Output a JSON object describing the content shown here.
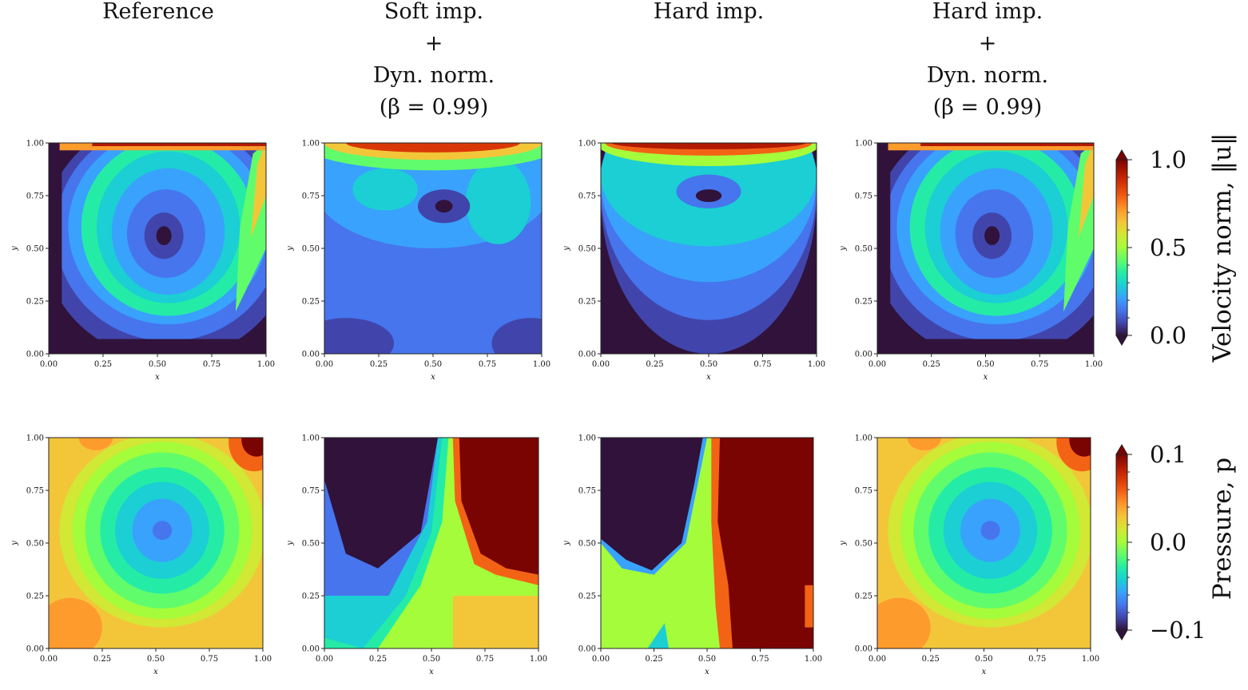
{
  "columns": [
    {
      "title_lines": [
        "Reference"
      ]
    },
    {
      "title_lines": [
        "Soft imp.",
        "+",
        "Dyn. norm.",
        "(β = 0.99)"
      ]
    },
    {
      "title_lines": [
        "Hard imp."
      ]
    },
    {
      "title_lines": [
        "Hard imp.",
        "+",
        "Dyn. norm.",
        "(β = 0.99)"
      ]
    }
  ],
  "chart_data": [
    {
      "type": "heatmap",
      "row": "velocity",
      "panels": [
        "Reference",
        "Soft imp. + Dyn. norm. (β = 0.99)",
        "Hard imp.",
        "Hard imp. + Dyn. norm. (β = 0.99)"
      ],
      "xlabel": "x",
      "ylabel": "y",
      "xlim": [
        0,
        1
      ],
      "ylim": [
        0,
        1
      ],
      "xticks": [
        "0.00",
        "0.25",
        "0.50",
        "0.75",
        "1.00"
      ],
      "yticks": [
        "0.00",
        "0.25",
        "0.50",
        "0.75",
        "1.00"
      ],
      "colorbar": {
        "label": "Velocity norm, ‖u‖",
        "range": [
          0.0,
          1.0
        ],
        "ticks": [
          "0.0",
          "0.5",
          "1.0"
        ],
        "colormap": "turbo",
        "extend": "both"
      }
    },
    {
      "type": "heatmap",
      "row": "pressure",
      "panels": [
        "Reference",
        "Soft imp. + Dyn. norm. (β = 0.99)",
        "Hard imp.",
        "Hard imp. + Dyn. norm. (β = 0.99)"
      ],
      "xlabel": "x",
      "ylabel": "y",
      "xlim": [
        0,
        1
      ],
      "ylim": [
        0,
        1
      ],
      "xticks": [
        "0.00",
        "0.25",
        "0.50",
        "0.75",
        "1.00"
      ],
      "yticks": [
        "0.00",
        "0.25",
        "0.50",
        "0.75",
        "1.00"
      ],
      "colorbar": {
        "label": "Pressure, p",
        "range": [
          -0.1,
          0.1
        ],
        "ticks": [
          "−0.1",
          "0.0",
          "0.1"
        ],
        "colormap": "turbo",
        "extend": "both"
      }
    }
  ],
  "colors": {
    "turbo": [
      "#30123b",
      "#4145ab",
      "#4675ed",
      "#39a2fc",
      "#1bcfd4",
      "#24eca6",
      "#61fc6c",
      "#a4fc3b",
      "#d1e834",
      "#f3c63a",
      "#fe9b2d",
      "#f36315",
      "#d93806",
      "#b11901",
      "#7a0402"
    ]
  }
}
